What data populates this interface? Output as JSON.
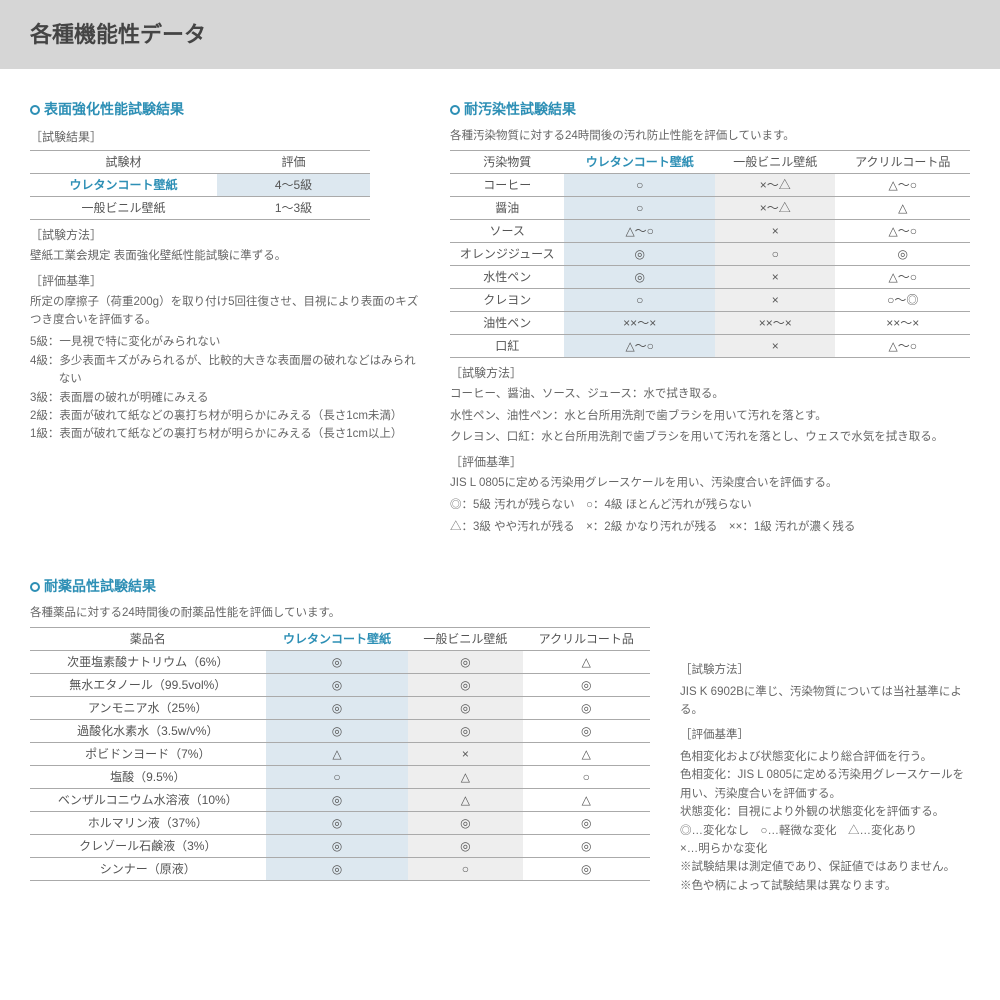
{
  "page_title": "各種機能性データ",
  "colors": {
    "header_bg": "#d6d6d6",
    "accent": "#2d8fb5",
    "hl_col_bg": "#dde8f0",
    "alt_col_bg": "#eeeeee",
    "border": "#aaaaaa",
    "text": "#555555"
  },
  "section1": {
    "title": "表面強化性能試験結果",
    "result_label": "［試験結果］",
    "cols": [
      "試験材",
      "評価"
    ],
    "rows": [
      {
        "name": "ウレタンコート壁紙",
        "val": "4～5級",
        "hl": true
      },
      {
        "name": "一般ビニル壁紙",
        "val": "1～3級",
        "hl": false
      }
    ],
    "method_label": "［試験方法］",
    "method_text": "壁紙工業会規定 表面強化壁紙性能試験に準ずる。",
    "criteria_label": "［評価基準］",
    "criteria_text": "所定の摩擦子（荷重200g）を取り付け5回往復させ、目視により表面のキズつき度合いを評価する。",
    "grades": [
      "5級：一見視で特に変化がみられない",
      "4級：多少表面キズがみられるが、比較的大きな表面層の破れなどはみられない",
      "3級：表面層の破れが明確にみえる",
      "2級：表面が破れて紙などの裏打ち材が明らかにみえる（長さ1cm未満）",
      "1級：表面が破れて紙などの裏打ち材が明らかにみえる（長さ1cm以上）"
    ]
  },
  "section2": {
    "title": "耐汚染性試験結果",
    "intro": "各種汚染物質に対する24時間後の汚れ防止性能を評価しています。",
    "cols": [
      "汚染物質",
      "ウレタンコート壁紙",
      "一般ビニル壁紙",
      "アクリルコート品"
    ],
    "rows": [
      [
        "コーヒー",
        "○",
        "×～△",
        "△～○"
      ],
      [
        "醤油",
        "○",
        "×～△",
        "△"
      ],
      [
        "ソース",
        "△～○",
        "×",
        "△～○"
      ],
      [
        "オレンジジュース",
        "◎",
        "○",
        "◎"
      ],
      [
        "水性ペン",
        "◎",
        "×",
        "△～○"
      ],
      [
        "クレヨン",
        "○",
        "×",
        "○～◎"
      ],
      [
        "油性ペン",
        "××～×",
        "××～×",
        "××～×"
      ],
      [
        "口紅",
        "△～○",
        "×",
        "△～○"
      ]
    ],
    "method_label": "［試験方法］",
    "method_lines": [
      "コーヒー、醤油、ソース、ジュース：水で拭き取る。",
      "水性ペン、油性ペン：水と台所用洗剤で歯ブラシを用いて汚れを落とす。",
      "クレヨン、口紅：水と台所用洗剤で歯ブラシを用いて汚れを落とし、ウェスで水気を拭き取る。"
    ],
    "criteria_label": "［評価基準］",
    "criteria_lines": [
      "JIS L 0805に定める汚染用グレースケールを用い、汚染度合いを評価する。",
      "◎：5級 汚れが残らない　○：4級 ほとんど汚れが残らない",
      "△：3級 やや汚れが残る　×：2級 かなり汚れが残る　××：1級 汚れが濃く残る"
    ]
  },
  "section3": {
    "title": "耐薬品性試験結果",
    "intro": "各種薬品に対する24時間後の耐薬品性能を評価しています。",
    "cols": [
      "薬品名",
      "ウレタンコート壁紙",
      "一般ビニル壁紙",
      "アクリルコート品"
    ],
    "rows": [
      [
        "次亜塩素酸ナトリウム（6%）",
        "◎",
        "◎",
        "△"
      ],
      [
        "無水エタノール（99.5vol%）",
        "◎",
        "◎",
        "◎"
      ],
      [
        "アンモニア水（25%）",
        "◎",
        "◎",
        "◎"
      ],
      [
        "過酸化水素水（3.5w/v%）",
        "◎",
        "◎",
        "◎"
      ],
      [
        "ポビドンヨード（7%）",
        "△",
        "×",
        "△"
      ],
      [
        "塩酸（9.5%）",
        "○",
        "△",
        "○"
      ],
      [
        "ベンザルコニウム水溶液（10%）",
        "◎",
        "△",
        "△"
      ],
      [
        "ホルマリン液（37%）",
        "◎",
        "◎",
        "◎"
      ],
      [
        "クレゾール石鹸液（3%）",
        "◎",
        "◎",
        "◎"
      ],
      [
        "シンナー（原液）",
        "◎",
        "○",
        "◎"
      ]
    ],
    "side": {
      "method_label": "［試験方法］",
      "method_text": "JIS K 6902Bに準じ、汚染物質については当社基準による。",
      "criteria_label": "［評価基準］",
      "criteria_lines": [
        "色相変化および状態変化により総合評価を行う。",
        "色相変化：JIS L 0805に定める汚染用グレースケールを用い、汚染度合いを評価する。",
        "状態変化：目視により外観の状態変化を評価する。",
        "◎…変化なし　○…軽微な変化　△…変化あり",
        "×…明らかな変化",
        "※試験結果は測定値であり、保証値ではありません。",
        "※色や柄によって試験結果は異なります。"
      ]
    }
  }
}
